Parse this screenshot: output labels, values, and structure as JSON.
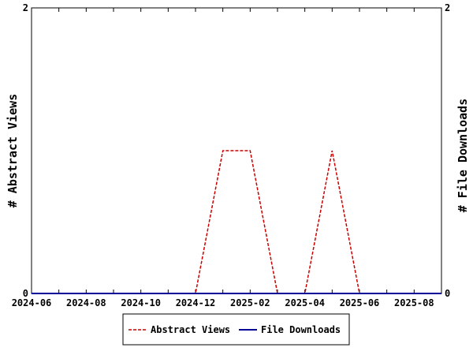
{
  "chart_data": {
    "type": "line",
    "x_ticks": [
      "2024-06",
      "2024-08",
      "2024-10",
      "2024-12",
      "2025-02",
      "2025-04",
      "2025-06",
      "2025-08"
    ],
    "x_range": [
      "2024-06-01",
      "2025-09-01"
    ],
    "ylabel_left": "# Abstract Views",
    "ylabel_right": "# File Downloads",
    "y_range": [
      0,
      2
    ],
    "y_ticks_left": [
      "0",
      "2"
    ],
    "y_ticks_right": [
      "0",
      "2"
    ],
    "grid": false,
    "legend_position": "bottom",
    "series": [
      {
        "name": "Abstract Views",
        "color": "#cc0000",
        "dash": "dashed",
        "points": [
          {
            "x": "2024-06-01",
            "y": 0
          },
          {
            "x": "2024-12-01",
            "y": 0
          },
          {
            "x": "2025-01-01",
            "y": 1
          },
          {
            "x": "2025-02-01",
            "y": 1
          },
          {
            "x": "2025-03-01",
            "y": 0
          },
          {
            "x": "2025-04-01",
            "y": 0
          },
          {
            "x": "2025-05-01",
            "y": 1
          },
          {
            "x": "2025-06-01",
            "y": 0
          },
          {
            "x": "2025-09-01",
            "y": 0
          }
        ]
      },
      {
        "name": "File Downloads",
        "color": "#000099",
        "dash": "solid",
        "points": [
          {
            "x": "2024-06-01",
            "y": 0
          },
          {
            "x": "2025-09-01",
            "y": 0
          }
        ]
      }
    ]
  }
}
